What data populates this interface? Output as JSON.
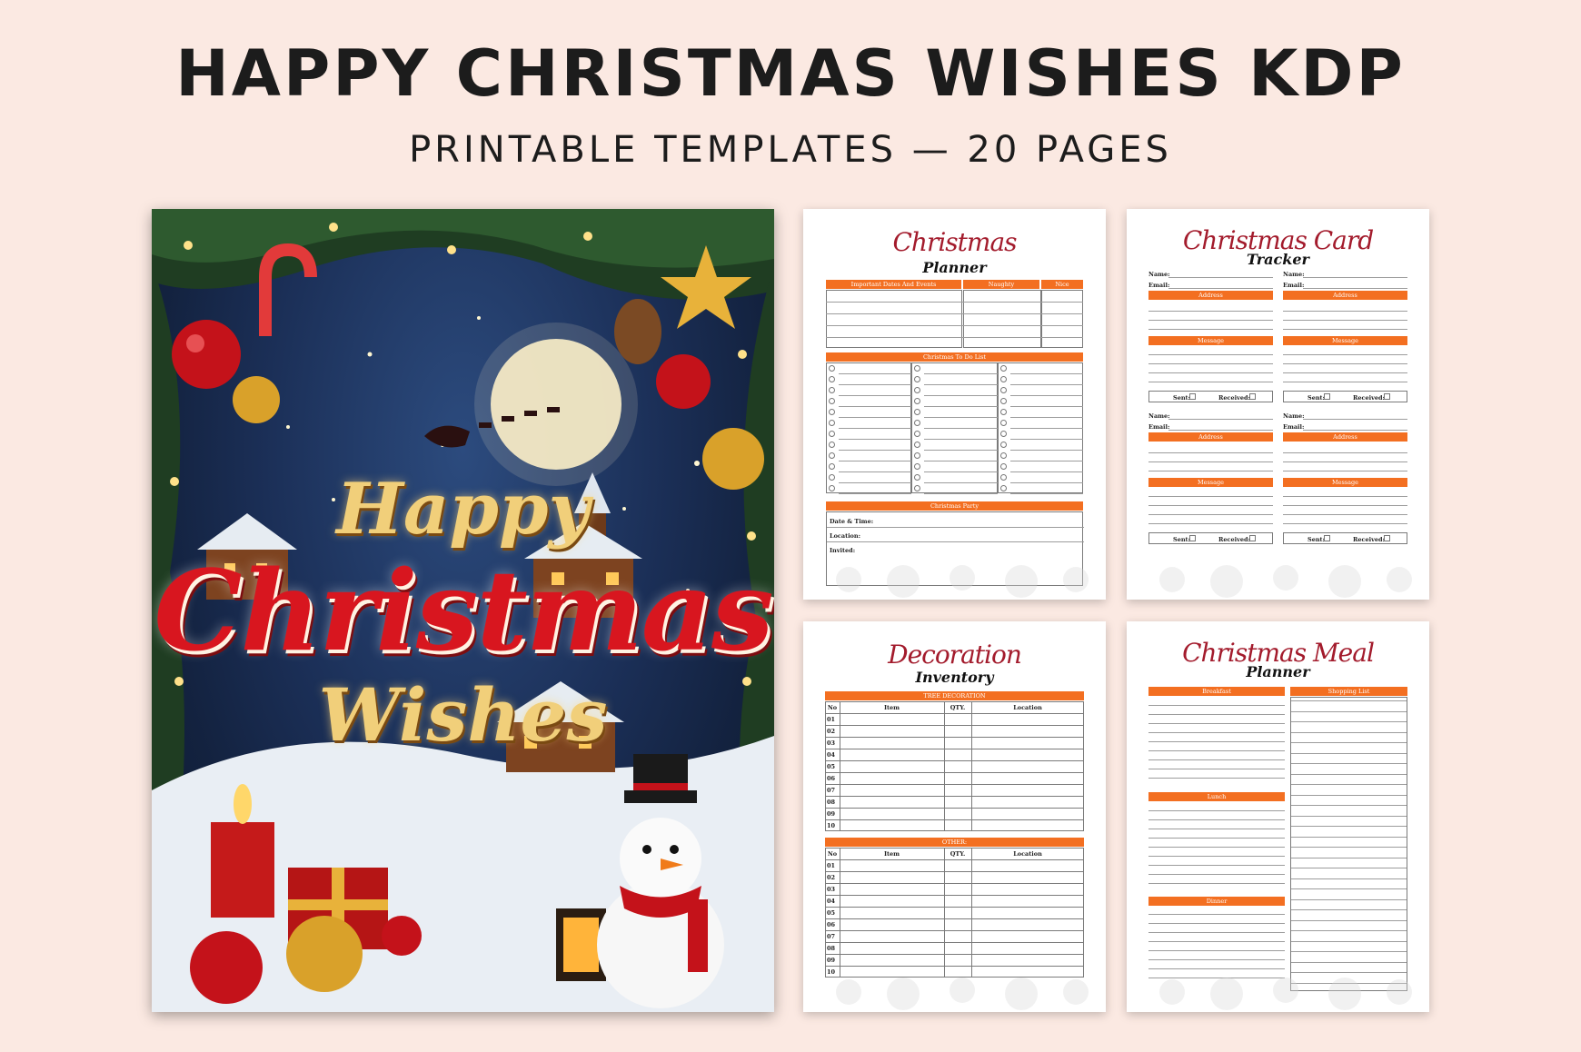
{
  "header": {
    "title": "HAPPY CHRISTMAS WISHES KDP",
    "subtitle": "PRINTABLE TEMPLATES — 20 PAGES"
  },
  "cover": {
    "line1": "Happy",
    "line2": "Christmas",
    "line3": "Wishes"
  },
  "planner": {
    "script": "Christmas",
    "sub": "Planner",
    "col1": "Important Dates And Events",
    "col2": "Naughty",
    "col3": "Nice",
    "todo": "Christmas To Do List",
    "party": "Christmas Party",
    "date": "Date & Time:",
    "location": "Location:",
    "invited": "Invited:"
  },
  "card": {
    "script": "Christmas Card",
    "sub": "Tracker",
    "name": "Name:",
    "email": "Email:",
    "address": "Address",
    "message": "Message",
    "sent": "Sent:",
    "received": "Received:"
  },
  "deco": {
    "script": "Decoration",
    "sub": "Inventory",
    "section1": "TREE DECORATION",
    "section2": "OTHER:",
    "no": "No",
    "item": "Item",
    "qty": "QTY.",
    "location": "Location",
    "rows": [
      "01",
      "02",
      "03",
      "04",
      "05",
      "06",
      "07",
      "08",
      "09",
      "10"
    ]
  },
  "meal": {
    "script": "Christmas Meal",
    "sub": "Planner",
    "breakfast": "Breakfast",
    "shopping": "Shopping List",
    "lunch": "Lunch",
    "dinner": "Dinner"
  },
  "colors": {
    "accent": "#f36f21",
    "script": "#a31b2c",
    "background": "#fbe9e2"
  }
}
